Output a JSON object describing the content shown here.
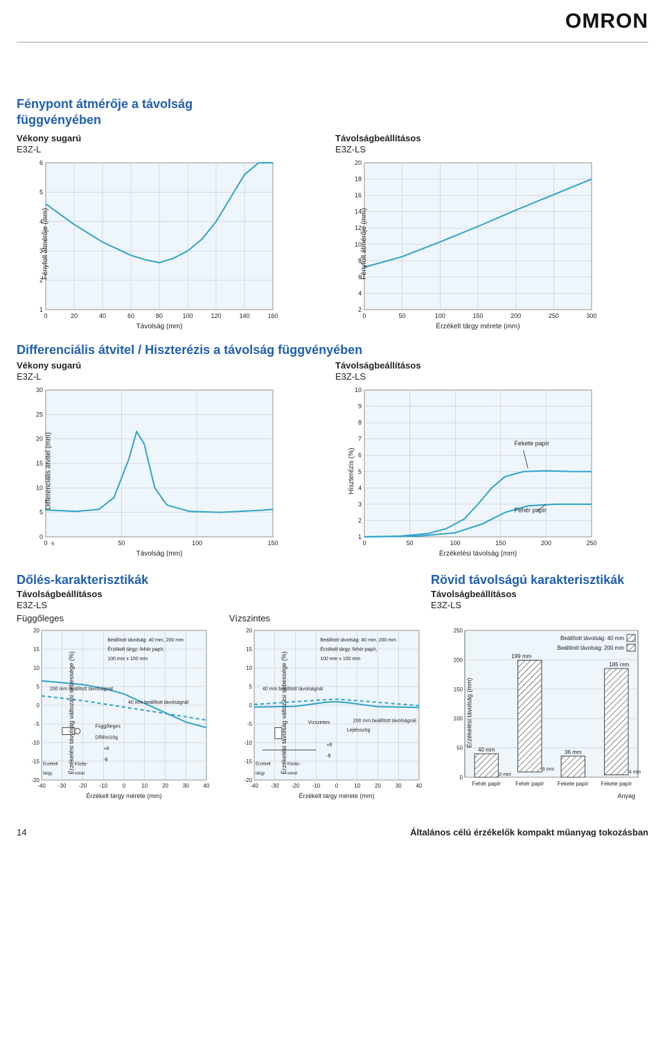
{
  "brand": "OMRON",
  "footer": {
    "page": "14",
    "text": "Általános célú érzékelők kompakt műanyag tokozásban"
  },
  "sect1": {
    "title1": "Fénypont átmérője a távolság",
    "title2": "függvényében",
    "left": {
      "sub1": "Vékony sugarú",
      "sub2": "E3Z-L",
      "chart": {
        "ylim": [
          1,
          6
        ],
        "yticks": [
          1,
          2,
          3,
          4,
          5,
          6
        ],
        "xlim": [
          0,
          160
        ],
        "xticks": [
          0,
          20,
          40,
          60,
          80,
          100,
          120,
          140,
          160
        ],
        "xlabel": "Távolság (mm)",
        "ylabel": "Fényfolt átmérője (mm)",
        "grid_color": "#bfbfbf",
        "bg": "#eef5fb",
        "border": "#666",
        "line_color": "#2fa3c9",
        "line_w": 2,
        "series": [
          [
            0,
            4.6
          ],
          [
            20,
            3.9
          ],
          [
            40,
            3.3
          ],
          [
            60,
            2.85
          ],
          [
            70,
            2.7
          ],
          [
            80,
            2.6
          ],
          [
            90,
            2.75
          ],
          [
            100,
            3.0
          ],
          [
            110,
            3.4
          ],
          [
            120,
            4.0
          ],
          [
            130,
            4.8
          ],
          [
            140,
            5.6
          ],
          [
            150,
            6.0
          ],
          [
            160,
            6.0
          ]
        ]
      }
    },
    "right": {
      "sub1": "Távolságbeállításos",
      "sub2": "E3Z-LS",
      "chart": {
        "ylim": [
          2,
          20
        ],
        "yticks": [
          2,
          4,
          6,
          8,
          10,
          12,
          14,
          16,
          18,
          20
        ],
        "xlim": [
          0,
          300
        ],
        "xticks": [
          0,
          50,
          100,
          150,
          200,
          250,
          300
        ],
        "xlabel": "Érzékelt tárgy mérete (mm)",
        "ylabel": "Fényfolt átmérője (mm)",
        "grid_color": "#bfbfbf",
        "bg": "#eef5fb",
        "border": "#666",
        "line_color": "#2fa3c9",
        "line_w": 2,
        "series": [
          [
            0,
            7.2
          ],
          [
            50,
            8.5
          ],
          [
            100,
            10.3
          ],
          [
            150,
            12.2
          ],
          [
            200,
            14.2
          ],
          [
            250,
            16.1
          ],
          [
            300,
            18.0
          ]
        ]
      }
    }
  },
  "sect2": {
    "title": "Differenciális átvitel / Hiszterézis a távolság függvényében",
    "left": {
      "sub1": "Vékony sugarú",
      "sub2": "E3Z-L",
      "chart": {
        "ylim": [
          0,
          30
        ],
        "yticks": [
          0,
          5,
          10,
          15,
          20,
          25,
          30
        ],
        "xlim": [
          0,
          150
        ],
        "xticks": [
          0,
          50,
          100,
          150
        ],
        "xtick_sub": "-5",
        "xlabel": "Távolság (mm)",
        "ylabel": "Differenciális átvitel (mm)",
        "grid_color": "#bfbfbf",
        "bg": "#eef5fb",
        "border": "#666",
        "line_color": "#2fa3c9",
        "line_w": 2,
        "series": [
          [
            0,
            5.5
          ],
          [
            20,
            5.2
          ],
          [
            35,
            5.6
          ],
          [
            45,
            8.0
          ],
          [
            55,
            16.0
          ],
          [
            60,
            21.5
          ],
          [
            65,
            19.0
          ],
          [
            72,
            10.0
          ],
          [
            80,
            6.5
          ],
          [
            95,
            5.2
          ],
          [
            115,
            5.0
          ],
          [
            140,
            5.4
          ],
          [
            150,
            5.6
          ]
        ]
      }
    },
    "right": {
      "sub1": "Távolságbeállításos",
      "sub2": "E3Z-LS",
      "chart": {
        "ylim": [
          1,
          10
        ],
        "yticks": [
          1,
          2,
          3,
          4,
          5,
          6,
          7,
          8,
          9,
          10
        ],
        "xlim": [
          0,
          250
        ],
        "xticks": [
          0,
          50,
          100,
          150,
          200,
          250
        ],
        "xlabel": "Érzékelési távolság (mm)",
        "ylabel": "Hiszterézis (%)",
        "grid_color": "#bfbfbf",
        "bg": "#eef5fb",
        "border": "#666",
        "line_color": "#2fa3c9",
        "line_w": 2,
        "series1_label": "Fekete papír",
        "series2_label": "Fehér papír",
        "series1": [
          [
            0,
            1.0
          ],
          [
            40,
            1.05
          ],
          [
            70,
            1.2
          ],
          [
            90,
            1.5
          ],
          [
            110,
            2.1
          ],
          [
            125,
            3.0
          ],
          [
            140,
            4.0
          ],
          [
            155,
            4.7
          ],
          [
            175,
            5.0
          ],
          [
            200,
            5.05
          ],
          [
            230,
            5.0
          ],
          [
            250,
            5.0
          ]
        ],
        "series2": [
          [
            0,
            1.0
          ],
          [
            60,
            1.05
          ],
          [
            100,
            1.25
          ],
          [
            130,
            1.8
          ],
          [
            155,
            2.5
          ],
          [
            180,
            2.9
          ],
          [
            210,
            3.0
          ],
          [
            250,
            3.0
          ]
        ]
      }
    }
  },
  "sect3": {
    "left_title": "Dőlés-karakterisztikák",
    "left_sub1": "Távolságbeállításos",
    "left_sub2": "E3Z-LS",
    "col1_head": "Függőleges",
    "col2_head": "Vízszintes",
    "right_title": "Rövid távolságú karakterisztikák",
    "right_sub1": "Távolságbeállításos",
    "right_sub2": "E3Z-LS",
    "c1": {
      "ylim": [
        -20,
        20
      ],
      "yticks": [
        -20,
        -15,
        -10,
        -5,
        0,
        5,
        10,
        15,
        20
      ],
      "xlim": [
        -40,
        40
      ],
      "xticks": [
        -40,
        -30,
        -20,
        -10,
        0,
        10,
        20,
        30,
        40
      ],
      "xlabel": "Érzékelt tárgy mérete (mm)",
      "ylabel": "Érzékelési távolság változási sebessége (%)",
      "grid_color": "#bfbfbf",
      "bg": "#eef5fb",
      "border": "#666",
      "line_solid": "#2fa3c9",
      "line_dash": "#2fa3c9",
      "line_w": 2,
      "note1": "Beállított távolság: 40 mm, 200 mm",
      "note2": "Érzékelt tárgy: fehér papír,",
      "note3": "100 mm x 100 mm",
      "ann200": "200 mm beállított távolságnál",
      "ann40": "40 mm beállított távolságnál",
      "ann_vert": "Függőleges",
      "ann_ang": "Dőlésszög",
      "ann_pt": "+θ",
      "ann_mt": "-θ",
      "ann_targ": "Érzékelt",
      "ann_targ2": "tárgy",
      "ann_mid": "Közép-",
      "ann_mid2": "vonal",
      "solid": [
        [
          -40,
          6.5
        ],
        [
          -20,
          5.5
        ],
        [
          -10,
          4.5
        ],
        [
          0,
          3.0
        ],
        [
          10,
          0.5
        ],
        [
          20,
          -2.0
        ],
        [
          30,
          -4.5
        ],
        [
          40,
          -6.0
        ]
      ],
      "dash": [
        [
          -40,
          2.5
        ],
        [
          -20,
          1.2
        ],
        [
          0,
          -0.5
        ],
        [
          20,
          -2.2
        ],
        [
          40,
          -4.0
        ]
      ]
    },
    "c2": {
      "ylim": [
        -20,
        20
      ],
      "yticks": [
        -20,
        -15,
        -10,
        -5,
        0,
        5,
        10,
        15,
        20
      ],
      "xlim": [
        -40,
        40
      ],
      "xticks": [
        -40,
        -30,
        -20,
        -10,
        0,
        10,
        20,
        30,
        40
      ],
      "xlabel": "Érzékelt tárgy mérete (mm)",
      "ylabel": "Érzékelési távolság változási sebessége (%)",
      "grid_color": "#bfbfbf",
      "bg": "#eef5fb",
      "border": "#666",
      "line_solid": "#2fa3c9",
      "line_dash": "#2fa3c9",
      "line_w": 2,
      "note1": "Beállított távolság: 40 mm, 200 mm",
      "note2": "Érzékelt tárgy: fehér papír,",
      "note3": "100 mm x 100 mm",
      "ann40": "40 mm beállított távolságnál",
      "ann200": "200 mm beállított távolságnál",
      "ann_horiz": "Vízszintes",
      "ann_ang": "Lejtésszög",
      "ann_pt": "+θ",
      "ann_mt": "-θ",
      "ann_targ": "Érzékelt",
      "ann_targ2": "tárgy",
      "ann_mid": "Közép-",
      "ann_mid2": "vonal",
      "solid": [
        [
          -40,
          -0.5
        ],
        [
          -20,
          -0.3
        ],
        [
          -5,
          0.8
        ],
        [
          0,
          0.9
        ],
        [
          5,
          0.7
        ],
        [
          20,
          -0.4
        ],
        [
          40,
          -0.6
        ]
      ],
      "dash": [
        [
          -40,
          0.2
        ],
        [
          -10,
          1.3
        ],
        [
          0,
          1.6
        ],
        [
          10,
          1.2
        ],
        [
          40,
          -0.1
        ]
      ]
    },
    "c3": {
      "ylim": [
        0,
        250
      ],
      "yticks": [
        0,
        50,
        100,
        150,
        200,
        250
      ],
      "xlabel": "Anyag",
      "ylabel": "Érzékelési távolság (mm)",
      "grid_color": "#bfbfbf",
      "bg": "#eef5fb",
      "border": "#666",
      "bar_fill": "#ffffff",
      "bar_stroke": "#444",
      "hatch": "#333",
      "note40": "Beállított távolság: 40 mm",
      "note200": "Beállított távolság: 200 mm",
      "top199": "199 mm",
      "top185": "185 mm",
      "lbl40": "40 mm",
      "lbl36": "36 mm",
      "lbl0": "0 mm",
      "lbl9": "9 mm",
      "lbl4": "4 mm",
      "cats": [
        "Fehér papír",
        "Fehér papír",
        "Fekete papír",
        "Fekete papír"
      ],
      "bars": [
        {
          "lo": 0,
          "hi": 40
        },
        {
          "lo": 9,
          "hi": 199
        },
        {
          "lo": 0,
          "hi": 36
        },
        {
          "lo": 4,
          "hi": 185
        }
      ]
    }
  }
}
